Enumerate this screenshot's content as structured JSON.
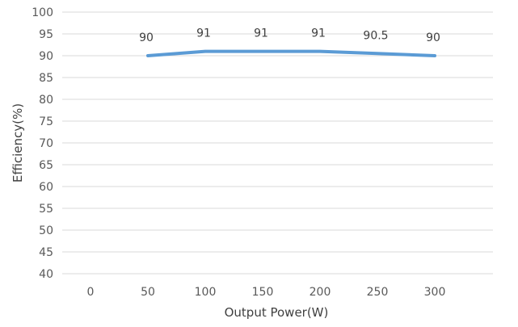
{
  "chart_data": {
    "type": "line",
    "xlabel": "Output Power(W)",
    "ylabel": "Efficiency(%)",
    "x_ticks": [
      "0",
      "50",
      "100",
      "150",
      "200",
      "250",
      "300"
    ],
    "ylim": [
      40,
      100
    ],
    "y_ticks": [
      "40",
      "45",
      "50",
      "55",
      "60",
      "65",
      "70",
      "75",
      "80",
      "85",
      "90",
      "95",
      "100"
    ],
    "grid": true,
    "legend": "none",
    "series": [
      {
        "color": "#5b9bd5",
        "x": [
          50,
          100,
          150,
          200,
          250,
          300
        ],
        "y": [
          90,
          91,
          91,
          91,
          90.5,
          90
        ],
        "labels": [
          "90",
          "91",
          "91",
          "91",
          "90.5",
          "90"
        ]
      }
    ]
  }
}
